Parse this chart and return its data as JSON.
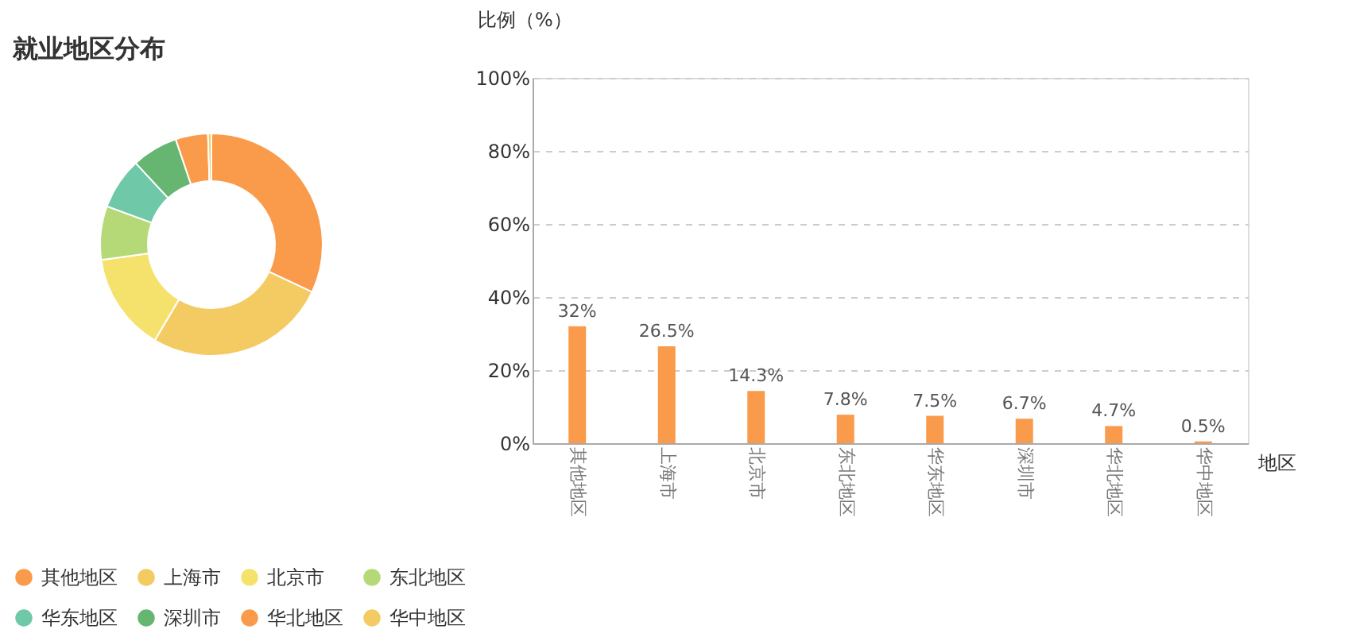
{
  "chart_data": [
    {
      "type": "donut",
      "title": "就业地区分布",
      "categories": [
        "其他地区",
        "上海市",
        "北京市",
        "东北地区",
        "华东地区",
        "深圳市",
        "华北地区",
        "华中地区"
      ],
      "values": [
        32,
        26.5,
        14.3,
        7.8,
        7.5,
        6.7,
        4.7,
        0.5
      ],
      "colors": [
        "#fa9b4b",
        "#f4cb63",
        "#f5e26d",
        "#b6d977",
        "#6fc8a8",
        "#66b672",
        "#fa9b4b",
        "#f4cb63"
      ],
      "legend": "bottom"
    },
    {
      "type": "bar",
      "xlabel": "地区",
      "ylabel": "比例（%）",
      "categories": [
        "其他地区",
        "上海市",
        "北京市",
        "东北地区",
        "华东地区",
        "深圳市",
        "华北地区",
        "华中地区"
      ],
      "values": [
        32,
        26.5,
        14.3,
        7.8,
        7.5,
        6.7,
        4.7,
        0.5
      ],
      "value_labels": [
        "32%",
        "26.5%",
        "14.3%",
        "7.8%",
        "7.5%",
        "6.7%",
        "4.7%",
        "0.5%"
      ],
      "color": "#fa9b4b",
      "ylim": [
        0,
        100
      ],
      "yticks": [
        {
          "value": 0,
          "label": "0%"
        },
        {
          "value": 20,
          "label": "20%"
        },
        {
          "value": 40,
          "label": "40%"
        },
        {
          "value": 60,
          "label": "60%"
        },
        {
          "value": 80,
          "label": "80%"
        },
        {
          "value": 100,
          "label": "100%"
        }
      ],
      "grid": "y"
    }
  ]
}
